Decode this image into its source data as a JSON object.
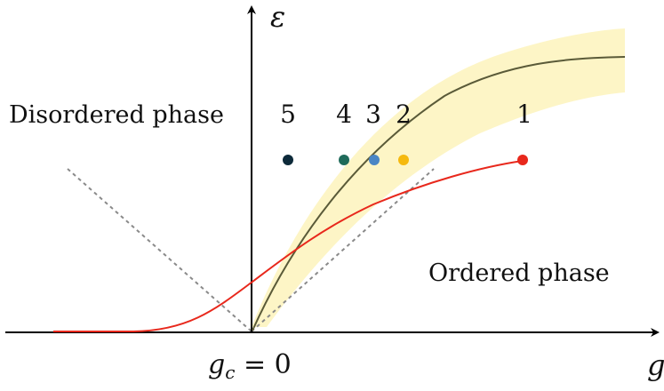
{
  "axes": {
    "y_label": "ε",
    "x_label": "g",
    "origin_label_main": "g",
    "origin_label_sub": "c",
    "origin_label_rest": " = 0"
  },
  "regions": {
    "disordered": "Disordered phase",
    "ordered": "Ordered phase"
  },
  "points": [
    {
      "label": "5",
      "color": "#0d2a3a"
    },
    {
      "label": "4",
      "color": "#1f6b5a"
    },
    {
      "label": "3",
      "color": "#4a86c5"
    },
    {
      "label": "2",
      "color": "#f5b90f"
    },
    {
      "label": "1",
      "color": "#e8281c"
    }
  ],
  "colors": {
    "axis": "#000000",
    "band": "#fdf5c6",
    "center_curve": "#5a5a38",
    "red_curve": "#e8281c",
    "dashed": "#8a8a8a"
  }
}
